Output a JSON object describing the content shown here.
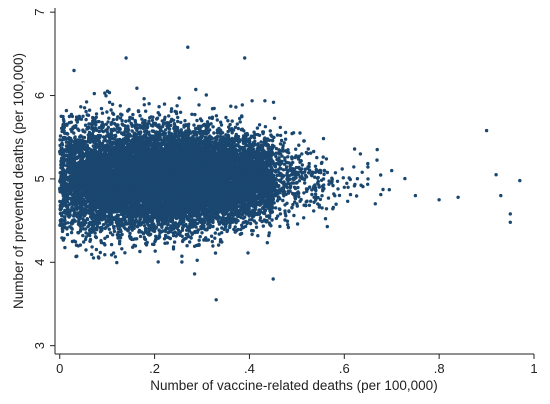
{
  "chart_data": {
    "type": "scatter",
    "title": "",
    "xlabel": "Number of vaccine-related deaths (per 100,000)",
    "ylabel": "Number of prevented deaths (per 100,000)",
    "xlim": [
      -0.01,
      1.0
    ],
    "ylim": [
      2.9,
      7.05
    ],
    "x_ticks": [
      0,
      0.2,
      0.4,
      0.6,
      0.8,
      1
    ],
    "x_tick_labels": [
      "0",
      ".2",
      ".4",
      ".6",
      ".8",
      "1"
    ],
    "y_ticks": [
      3,
      4,
      5,
      6,
      7
    ],
    "y_tick_labels": [
      "3",
      "4",
      "5",
      "6",
      "7"
    ],
    "grid": false,
    "legend": "none",
    "marker_color": "#1a476f",
    "series": [
      {
        "values_note_free": true,
        "points": [
          [
            0.02,
            5.0
          ],
          [
            0.05,
            4.6
          ],
          [
            0.08,
            5.4
          ],
          [
            0.12,
            5.0
          ],
          [
            0.15,
            4.3
          ],
          [
            0.18,
            5.7
          ],
          [
            0.22,
            5.1
          ],
          [
            0.25,
            4.8
          ],
          [
            0.3,
            5.3
          ],
          [
            0.35,
            4.6
          ],
          [
            0.4,
            5.0
          ],
          [
            0.45,
            5.2
          ],
          [
            0.5,
            4.7
          ],
          [
            0.55,
            5.1
          ],
          [
            0.6,
            4.9
          ],
          [
            0.65,
            5.0
          ],
          [
            0.7,
            5.1
          ],
          [
            0.75,
            4.8
          ],
          [
            0.8,
            4.75
          ],
          [
            0.84,
            4.78
          ],
          [
            0.9,
            5.58
          ],
          [
            0.92,
            5.05
          ],
          [
            0.93,
            4.8
          ],
          [
            0.95,
            4.58
          ],
          [
            0.95,
            4.48
          ],
          [
            0.97,
            4.98
          ],
          [
            0.33,
            3.55
          ],
          [
            0.27,
            6.58
          ],
          [
            0.03,
            6.3
          ],
          [
            0.14,
            6.45
          ],
          [
            0.39,
            6.45
          ],
          [
            0.45,
            3.8
          ]
        ]
      }
    ]
  }
}
